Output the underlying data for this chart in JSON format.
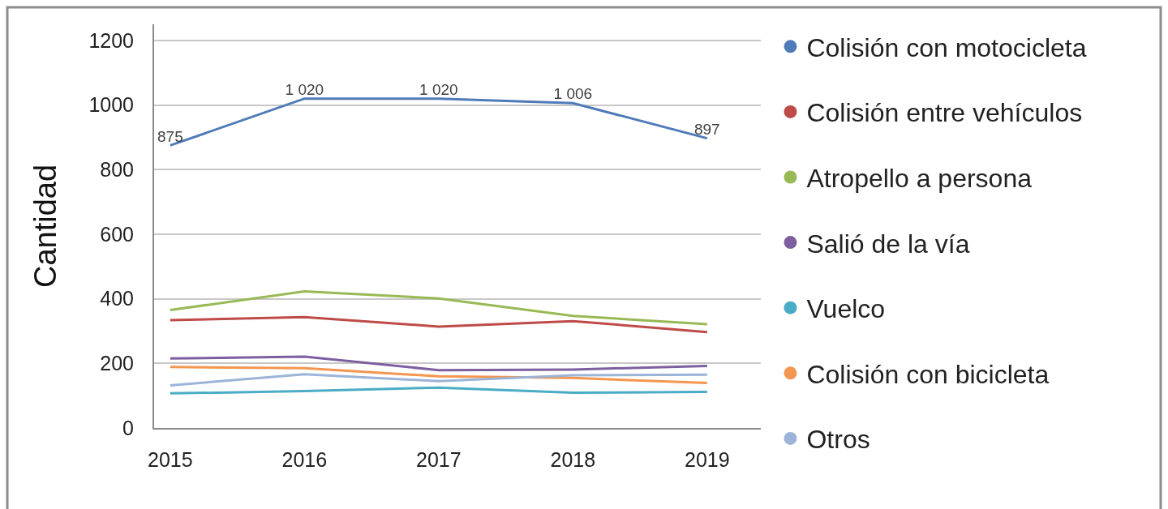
{
  "chart_data": {
    "type": "line",
    "ylabel": "Cantidad",
    "categories": [
      "2015",
      "2016",
      "2017",
      "2018",
      "2019"
    ],
    "ylim": [
      0,
      1250
    ],
    "yticks": [
      0,
      200,
      400,
      600,
      800,
      1000,
      1200
    ],
    "grid": "y",
    "legend": "right",
    "series": [
      {
        "name": "Colisión con motocicleta",
        "color": "#4f7bb8",
        "values": [
          875,
          1020,
          1020,
          1006,
          897
        ],
        "value_labels": [
          "875",
          "1 020",
          "1 020",
          "1 006",
          "897"
        ]
      },
      {
        "name": "Colisión entre vehículos",
        "color": "#be4b48",
        "values": [
          334,
          343,
          314,
          331,
          297
        ]
      },
      {
        "name": "Atropello a persona",
        "color": "#98b954",
        "values": [
          365,
          423,
          401,
          347,
          321
        ]
      },
      {
        "name": "Salió de la vía",
        "color": "#7d5fa0",
        "values": [
          215,
          221,
          179,
          181,
          192
        ]
      },
      {
        "name": "Vuelco",
        "color": "#4bacc6",
        "values": [
          107,
          114,
          125,
          109,
          112
        ]
      },
      {
        "name": "Colisión con bicicleta",
        "color": "#f39650",
        "values": [
          189,
          185,
          160,
          155,
          139
        ]
      },
      {
        "name": "Otros",
        "color": "#9bb4d8",
        "values": [
          132,
          166,
          145,
          163,
          165
        ]
      }
    ]
  }
}
